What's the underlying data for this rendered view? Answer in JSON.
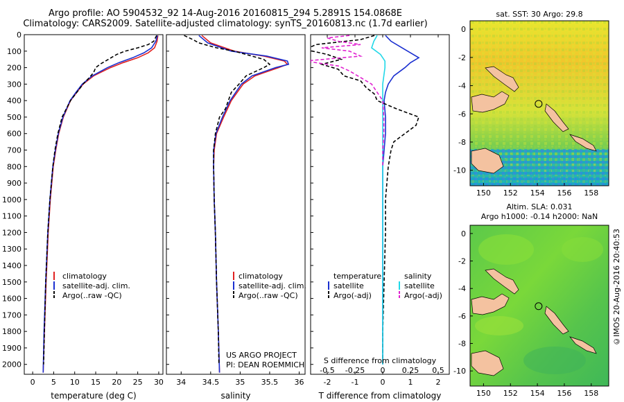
{
  "header": {
    "line1": "Argo profile: AO 5904532_92 14-Aug-2016 20160815_294 5.2891S 154.0868E",
    "line2": "Climatology: CARS2009. Satellite-adjusted climatology: synTS_20160813.nc (1.7d earlier)"
  },
  "y_ticks": [
    0,
    100,
    200,
    300,
    400,
    500,
    600,
    700,
    800,
    900,
    1000,
    1100,
    1200,
    1300,
    1400,
    1500,
    1600,
    1700,
    1800,
    1900,
    2000
  ],
  "credit": "©IMOS 20-Aug-2016 20:40:53",
  "project": {
    "line1": "US ARGO PROJECT",
    "line2": "PI: DEAN ROEMMICH"
  },
  "colors": {
    "climatology": "#e02020",
    "satellite": "#1a2fd0",
    "argo": "#000000",
    "sal_sat": "#20d8e8",
    "sal_argo": "#e020d0"
  },
  "chart_data": [
    {
      "type": "line",
      "xlabel": "temperature (deg C)",
      "xlim": [
        -2,
        31
      ],
      "xticks": [
        0,
        5,
        10,
        15,
        20,
        25,
        30
      ],
      "ylim": [
        0,
        2060
      ],
      "y_inverted": true,
      "legend": [
        "climatology",
        "satellite-adj. clim.",
        "Argo(..raw -QC)"
      ],
      "series": [
        {
          "name": "climatology",
          "color": "red",
          "depth": [
            5,
            40,
            80,
            110,
            140,
            170,
            200,
            250,
            300,
            350,
            400,
            500,
            600,
            700,
            800,
            1000,
            1200,
            1500,
            1800,
            2050
          ],
          "values": [
            29.8,
            29.6,
            29.0,
            27.5,
            25.0,
            21.5,
            18.5,
            14.5,
            12.0,
            10.5,
            9.0,
            7.3,
            6.2,
            5.5,
            4.9,
            4.2,
            3.7,
            3.2,
            2.8,
            2.5
          ]
        },
        {
          "name": "satellite-adj. clim.",
          "color": "blue",
          "depth": [
            5,
            40,
            80,
            110,
            140,
            170,
            200,
            250,
            300,
            350,
            400,
            500,
            600,
            700,
            800,
            1000,
            1200,
            1500,
            1800,
            2050
          ],
          "values": [
            29.7,
            29.3,
            28.3,
            26.5,
            23.8,
            20.5,
            17.8,
            14.2,
            11.8,
            10.3,
            8.9,
            7.2,
            6.1,
            5.4,
            4.8,
            4.1,
            3.6,
            3.1,
            2.7,
            2.5
          ]
        },
        {
          "name": "Argo(..raw -QC)",
          "color": "black",
          "depth": [
            5,
            40,
            60,
            80,
            100,
            120,
            150,
            180,
            200,
            230,
            260,
            300,
            350,
            400,
            450,
            500,
            600,
            700,
            800,
            1000,
            1200,
            1500,
            1800,
            2000
          ],
          "values": [
            29.5,
            28.8,
            27.5,
            25.0,
            22.0,
            20.0,
            18.0,
            16.0,
            15.0,
            14.5,
            13.5,
            12.0,
            10.5,
            9.0,
            8.0,
            7.0,
            6.0,
            5.3,
            4.8,
            4.1,
            3.6,
            3.1,
            2.8,
            2.6
          ]
        }
      ]
    },
    {
      "type": "line",
      "xlabel": "salinity",
      "xlim": [
        33.75,
        36.1
      ],
      "xticks": [
        34,
        34.5,
        35,
        35.5,
        36
      ],
      "ylim": [
        0,
        2060
      ],
      "y_inverted": true,
      "legend": [
        "climatology",
        "satellite-adj. clim.",
        "Argo(..raw -QC)"
      ],
      "series": [
        {
          "name": "climatology",
          "color": "red",
          "depth": [
            5,
            50,
            100,
            130,
            160,
            180,
            200,
            250,
            300,
            400,
            500,
            600,
            700,
            800,
            1000,
            1200,
            1500,
            1800,
            2050
          ],
          "values": [
            34.35,
            34.5,
            34.9,
            35.4,
            35.75,
            35.8,
            35.65,
            35.25,
            35.05,
            34.85,
            34.72,
            34.6,
            34.56,
            34.55,
            34.56,
            34.58,
            34.6,
            34.63,
            34.65
          ]
        },
        {
          "name": "satellite-adj. clim.",
          "color": "blue",
          "depth": [
            5,
            50,
            100,
            130,
            160,
            180,
            200,
            250,
            300,
            400,
            500,
            600,
            700,
            800,
            1000,
            1200,
            1500,
            1800,
            2050
          ],
          "values": [
            34.3,
            34.45,
            34.85,
            35.45,
            35.8,
            35.82,
            35.6,
            35.2,
            35.02,
            34.83,
            34.7,
            34.59,
            34.55,
            34.55,
            34.56,
            34.58,
            34.6,
            34.63,
            34.65
          ]
        },
        {
          "name": "Argo(..raw -QC)",
          "color": "black",
          "depth": [
            5,
            30,
            50,
            80,
            100,
            130,
            150,
            180,
            200,
            250,
            300,
            350,
            400,
            450,
            500,
            600,
            700,
            800,
            1000,
            1200,
            1500,
            1800,
            2000
          ],
          "values": [
            34.05,
            34.2,
            34.3,
            34.6,
            34.9,
            35.2,
            35.4,
            35.5,
            35.4,
            35.1,
            34.98,
            34.85,
            34.8,
            34.75,
            34.65,
            34.58,
            34.55,
            34.55,
            34.56,
            34.58,
            34.6,
            34.63,
            34.64
          ]
        }
      ]
    },
    {
      "type": "line",
      "xlabel": "T difference from climatology",
      "xlabel_top": "S difference from climatology",
      "xlim": [
        -2.6,
        2.4
      ],
      "xticks": [
        -2,
        -1,
        0,
        1,
        2
      ],
      "xticks_top": [
        {
          "v": -0.5,
          "label": "-0.5"
        },
        {
          "v": -0.25,
          "label": "-0.25"
        },
        {
          "v": 0,
          "label": "0"
        },
        {
          "v": 0.25,
          "label": "0.25"
        },
        {
          "v": 0.5,
          "label": "0.5"
        }
      ],
      "ylim": [
        0,
        2060
      ],
      "y_inverted": true,
      "legend": {
        "temperature": [
          "satellite",
          "Argo(-adj)"
        ],
        "salinity": [
          "satellite",
          "Argo(-adj)"
        ]
      },
      "legend_headers": [
        "temperature",
        "salinity"
      ],
      "series": [
        {
          "name": "satellite",
          "kind": "temperature",
          "color": "blue",
          "depth": [
            5,
            40,
            80,
            110,
            140,
            170,
            200,
            250,
            300,
            350,
            400,
            500,
            600,
            700,
            800,
            1000,
            1500,
            2000
          ],
          "values": [
            0.1,
            0.3,
            0.7,
            1.0,
            1.3,
            1.0,
            0.8,
            0.4,
            0.2,
            0.1,
            0.05,
            0.1,
            0.1,
            0.05,
            0,
            0,
            0,
            0
          ]
        },
        {
          "name": "Argo(-adj)",
          "kind": "temperature",
          "color": "black",
          "depth": [
            5,
            30,
            60,
            90,
            120,
            150,
            180,
            210,
            250,
            280,
            320,
            360,
            400,
            450,
            500,
            550,
            600,
            650,
            700,
            800,
            1000,
            1200,
            1500,
            1800,
            2000
          ],
          "values": [
            -0.3,
            -0.8,
            -2.4,
            -2.8,
            -2.0,
            -1.5,
            -2.2,
            -1.6,
            -1.4,
            -0.8,
            -0.6,
            -0.3,
            -0.2,
            0.5,
            1.3,
            1.2,
            0.8,
            0.4,
            0.3,
            0.2,
            0.1,
            0.1,
            0.05,
            0,
            0
          ]
        },
        {
          "name": "satellite",
          "kind": "salinity",
          "color": "cyan",
          "depth": [
            5,
            40,
            80,
            120,
            160,
            200,
            250,
            300,
            400,
            500,
            700,
            1000,
            1500,
            2000
          ],
          "values": [
            -0.05,
            -0.08,
            -0.1,
            -0.02,
            0.02,
            0.02,
            0.01,
            0.0,
            0.0,
            0.0,
            0.0,
            0.0,
            0.0,
            0.0
          ]
        },
        {
          "name": "Argo(-adj)",
          "kind": "salinity",
          "color": "magenta",
          "depth": [
            5,
            20,
            40,
            60,
            80,
            100,
            130,
            160,
            190,
            220,
            260,
            300,
            400,
            500,
            600,
            700,
            800
          ],
          "values": [
            -0.3,
            -0.5,
            -0.4,
            -0.2,
            -0.55,
            -0.3,
            -0.2,
            -0.7,
            -0.4,
            -0.3,
            -0.2,
            -0.1,
            0.0,
            0.01,
            0.01,
            0.0,
            0.0
          ]
        }
      ]
    },
    {
      "type": "heatmap",
      "title": "sat. SST: 30 Argo: 29.8",
      "xlim": [
        149,
        159.3
      ],
      "ylim": [
        -11.1,
        0.6
      ],
      "xticks": [
        150,
        152,
        154,
        156,
        158
      ],
      "yticks": [
        0,
        -2,
        -4,
        -6,
        -8,
        -10
      ],
      "marker": {
        "x": 154.09,
        "y": -5.29
      }
    },
    {
      "type": "heatmap",
      "title": "Altim. SLA: 0.031",
      "subtitle": "Argo h1000: -0.14 h2000: NaN",
      "xlim": [
        149,
        159.3
      ],
      "ylim": [
        -11.1,
        0.6
      ],
      "xticks": [
        150,
        152,
        154,
        156,
        158
      ],
      "yticks": [
        0,
        -2,
        -4,
        -6,
        -8,
        -10
      ],
      "marker": {
        "x": 154.09,
        "y": -5.29
      }
    }
  ]
}
